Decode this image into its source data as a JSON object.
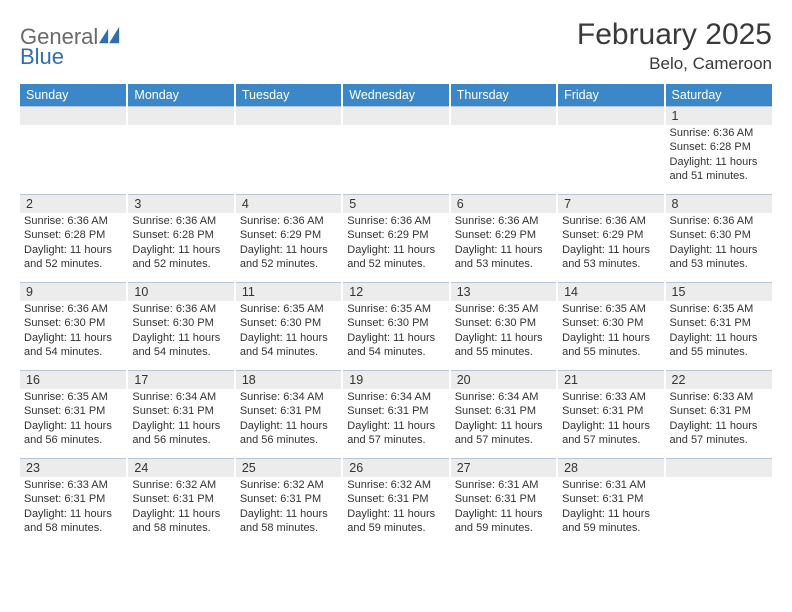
{
  "logo": {
    "word1": "General",
    "word2": "Blue"
  },
  "title": "February 2025",
  "subtitle": "Belo, Cameroon",
  "colors": {
    "header_bg": "#3b87c8",
    "header_text": "#ffffff",
    "daynum_bg": "#ececec",
    "divider": "#b8c5d6",
    "body_text": "#333333",
    "logo_gray": "#6a6a6a",
    "logo_blue": "#2f6fb0"
  },
  "layout": {
    "columns": 7,
    "rows": 5
  },
  "weekdays": [
    "Sunday",
    "Monday",
    "Tuesday",
    "Wednesday",
    "Thursday",
    "Friday",
    "Saturday"
  ],
  "weeks": [
    [
      {
        "day": "",
        "lines": []
      },
      {
        "day": "",
        "lines": []
      },
      {
        "day": "",
        "lines": []
      },
      {
        "day": "",
        "lines": []
      },
      {
        "day": "",
        "lines": []
      },
      {
        "day": "",
        "lines": []
      },
      {
        "day": "1",
        "lines": [
          "Sunrise: 6:36 AM",
          "Sunset: 6:28 PM",
          "Daylight: 11 hours and 51 minutes."
        ]
      }
    ],
    [
      {
        "day": "2",
        "lines": [
          "Sunrise: 6:36 AM",
          "Sunset: 6:28 PM",
          "Daylight: 11 hours and 52 minutes."
        ]
      },
      {
        "day": "3",
        "lines": [
          "Sunrise: 6:36 AM",
          "Sunset: 6:28 PM",
          "Daylight: 11 hours and 52 minutes."
        ]
      },
      {
        "day": "4",
        "lines": [
          "Sunrise: 6:36 AM",
          "Sunset: 6:29 PM",
          "Daylight: 11 hours and 52 minutes."
        ]
      },
      {
        "day": "5",
        "lines": [
          "Sunrise: 6:36 AM",
          "Sunset: 6:29 PM",
          "Daylight: 11 hours and 52 minutes."
        ]
      },
      {
        "day": "6",
        "lines": [
          "Sunrise: 6:36 AM",
          "Sunset: 6:29 PM",
          "Daylight: 11 hours and 53 minutes."
        ]
      },
      {
        "day": "7",
        "lines": [
          "Sunrise: 6:36 AM",
          "Sunset: 6:29 PM",
          "Daylight: 11 hours and 53 minutes."
        ]
      },
      {
        "day": "8",
        "lines": [
          "Sunrise: 6:36 AM",
          "Sunset: 6:30 PM",
          "Daylight: 11 hours and 53 minutes."
        ]
      }
    ],
    [
      {
        "day": "9",
        "lines": [
          "Sunrise: 6:36 AM",
          "Sunset: 6:30 PM",
          "Daylight: 11 hours and 54 minutes."
        ]
      },
      {
        "day": "10",
        "lines": [
          "Sunrise: 6:36 AM",
          "Sunset: 6:30 PM",
          "Daylight: 11 hours and 54 minutes."
        ]
      },
      {
        "day": "11",
        "lines": [
          "Sunrise: 6:35 AM",
          "Sunset: 6:30 PM",
          "Daylight: 11 hours and 54 minutes."
        ]
      },
      {
        "day": "12",
        "lines": [
          "Sunrise: 6:35 AM",
          "Sunset: 6:30 PM",
          "Daylight: 11 hours and 54 minutes."
        ]
      },
      {
        "day": "13",
        "lines": [
          "Sunrise: 6:35 AM",
          "Sunset: 6:30 PM",
          "Daylight: 11 hours and 55 minutes."
        ]
      },
      {
        "day": "14",
        "lines": [
          "Sunrise: 6:35 AM",
          "Sunset: 6:30 PM",
          "Daylight: 11 hours and 55 minutes."
        ]
      },
      {
        "day": "15",
        "lines": [
          "Sunrise: 6:35 AM",
          "Sunset: 6:31 PM",
          "Daylight: 11 hours and 55 minutes."
        ]
      }
    ],
    [
      {
        "day": "16",
        "lines": [
          "Sunrise: 6:35 AM",
          "Sunset: 6:31 PM",
          "Daylight: 11 hours and 56 minutes."
        ]
      },
      {
        "day": "17",
        "lines": [
          "Sunrise: 6:34 AM",
          "Sunset: 6:31 PM",
          "Daylight: 11 hours and 56 minutes."
        ]
      },
      {
        "day": "18",
        "lines": [
          "Sunrise: 6:34 AM",
          "Sunset: 6:31 PM",
          "Daylight: 11 hours and 56 minutes."
        ]
      },
      {
        "day": "19",
        "lines": [
          "Sunrise: 6:34 AM",
          "Sunset: 6:31 PM",
          "Daylight: 11 hours and 57 minutes."
        ]
      },
      {
        "day": "20",
        "lines": [
          "Sunrise: 6:34 AM",
          "Sunset: 6:31 PM",
          "Daylight: 11 hours and 57 minutes."
        ]
      },
      {
        "day": "21",
        "lines": [
          "Sunrise: 6:33 AM",
          "Sunset: 6:31 PM",
          "Daylight: 11 hours and 57 minutes."
        ]
      },
      {
        "day": "22",
        "lines": [
          "Sunrise: 6:33 AM",
          "Sunset: 6:31 PM",
          "Daylight: 11 hours and 57 minutes."
        ]
      }
    ],
    [
      {
        "day": "23",
        "lines": [
          "Sunrise: 6:33 AM",
          "Sunset: 6:31 PM",
          "Daylight: 11 hours and 58 minutes."
        ]
      },
      {
        "day": "24",
        "lines": [
          "Sunrise: 6:32 AM",
          "Sunset: 6:31 PM",
          "Daylight: 11 hours and 58 minutes."
        ]
      },
      {
        "day": "25",
        "lines": [
          "Sunrise: 6:32 AM",
          "Sunset: 6:31 PM",
          "Daylight: 11 hours and 58 minutes."
        ]
      },
      {
        "day": "26",
        "lines": [
          "Sunrise: 6:32 AM",
          "Sunset: 6:31 PM",
          "Daylight: 11 hours and 59 minutes."
        ]
      },
      {
        "day": "27",
        "lines": [
          "Sunrise: 6:31 AM",
          "Sunset: 6:31 PM",
          "Daylight: 11 hours and 59 minutes."
        ]
      },
      {
        "day": "28",
        "lines": [
          "Sunrise: 6:31 AM",
          "Sunset: 6:31 PM",
          "Daylight: 11 hours and 59 minutes."
        ]
      },
      {
        "day": "",
        "lines": []
      }
    ]
  ]
}
